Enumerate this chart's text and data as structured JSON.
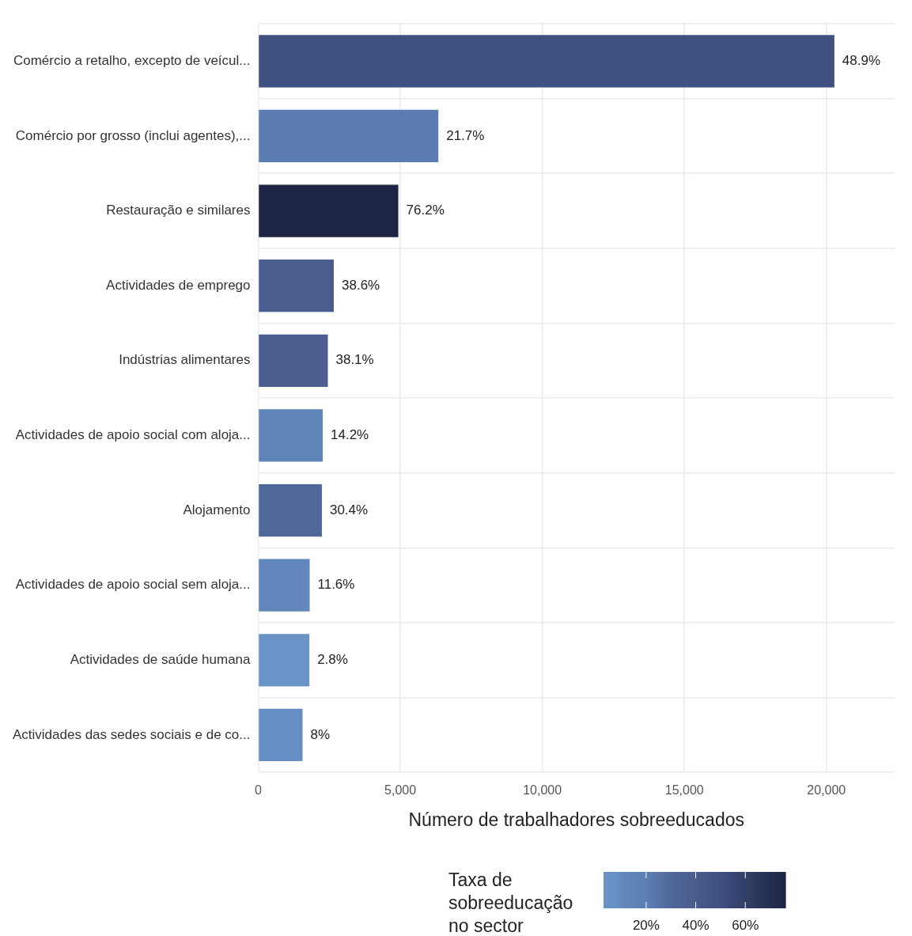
{
  "chart_data": {
    "type": "bar",
    "orientation": "horizontal",
    "categories": [
      "Comércio a retalho, excepto de veícul...",
      "Comércio por grosso (inclui agentes),...",
      "Restauração e similares",
      "Actividades de emprego",
      "Indústrias alimentares",
      "Actividades de apoio social com aloja...",
      "Alojamento",
      "Actividades de apoio social sem aloja...",
      "Actividades de saúde humana",
      "Actividades das sedes sociais e de co..."
    ],
    "values": [
      20280,
      6340,
      4930,
      2660,
      2450,
      2270,
      2240,
      1810,
      1800,
      1560
    ],
    "colors": [
      "#3f5180",
      "#5b7cb0",
      "#1d2444",
      "#4a5d8e",
      "#4b5e8f",
      "#5f84b8",
      "#50679a",
      "#6187bc",
      "#6a94c8",
      "#6690c4"
    ],
    "cvalues": [
      48.9,
      21.7,
      76.2,
      38.6,
      38.1,
      14.2,
      30.4,
      11.6,
      2.8,
      8
    ],
    "annotations": [
      {
        "text": "48.9%",
        "x": 20280,
        "y": "Comércio a retalho, excepto de veícul..."
      },
      {
        "text": "21.7%",
        "x": 6340,
        "y": "Comércio por grosso (inclui agentes),..."
      },
      {
        "text": "76.2%",
        "x": 4930,
        "y": "Restauração e similares"
      },
      {
        "text": "38.6%",
        "x": 2660,
        "y": "Actividades de emprego"
      },
      {
        "text": "38.1%",
        "x": 2450,
        "y": "Indústrias alimentares"
      },
      {
        "text": "14.2%",
        "x": 2270,
        "y": "Actividades de apoio social com aloja..."
      },
      {
        "text": "30.4%",
        "x": 2240,
        "y": "Alojamento"
      },
      {
        "text": "11.6%",
        "x": 1810,
        "y": "Actividades de apoio social sem aloja..."
      },
      {
        "text": "2.8%",
        "x": 1800,
        "y": "Actividades de saúde humana"
      },
      {
        "text": "8%",
        "x": 1560,
        "y": "Actividades das sedes sociais e de co..."
      }
    ],
    "xlabel": "Número de trabalhadores sobreeducados",
    "clabel": "Taxa de sobreeducação no sector",
    "clim": [
      2.8,
      76.2
    ],
    "cticks": [
      {
        "value": 20,
        "label": "20%"
      },
      {
        "value": 40,
        "label": "40%"
      },
      {
        "value": 60,
        "label": "60%"
      }
    ],
    "xlim": [
      0,
      22400
    ],
    "xticks": [
      {
        "value": 0,
        "label": "0"
      },
      {
        "value": 5000,
        "label": "5,000"
      },
      {
        "value": 10000,
        "label": "10,000"
      },
      {
        "value": 15000,
        "label": "15,000"
      },
      {
        "value": 20000,
        "label": "20,000"
      }
    ],
    "grid": true,
    "legend": false
  }
}
